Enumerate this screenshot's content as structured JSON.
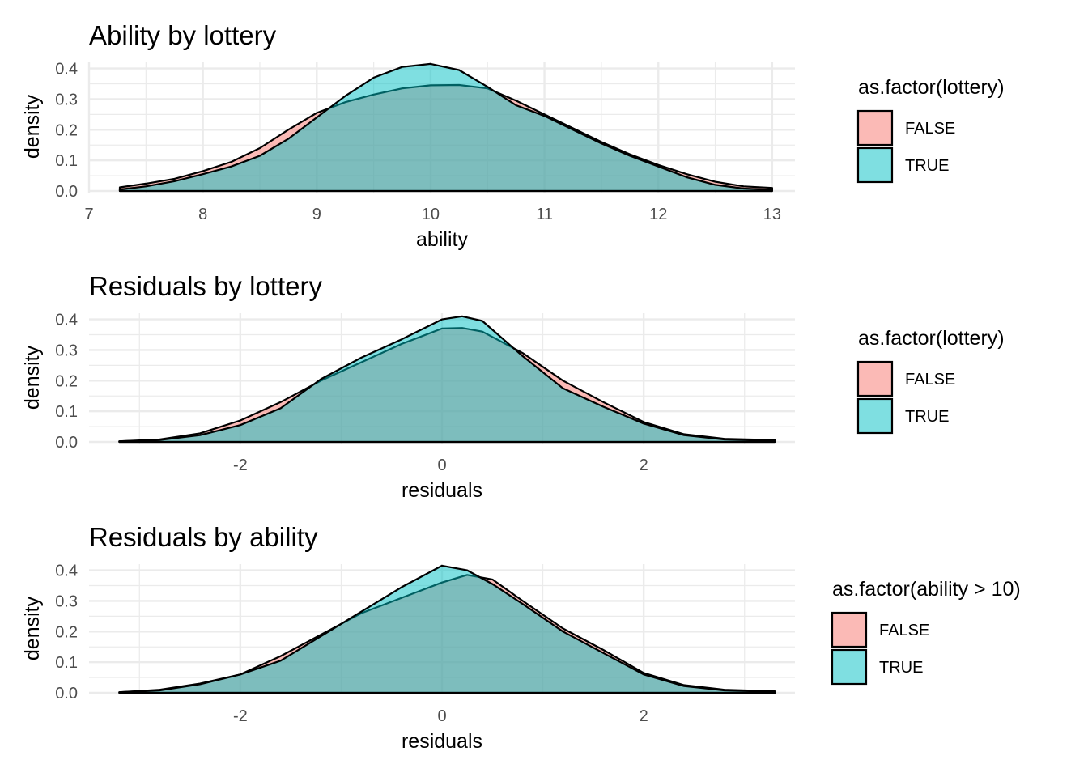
{
  "colors": {
    "false_fill": "#F8766D",
    "true_fill": "#00BFC4",
    "outline": "#000000",
    "grid": "#EBEBEB"
  },
  "chart_data": [
    {
      "type": "area",
      "subtype": "density",
      "title": "Ability by lottery",
      "xlabel": "ability",
      "ylabel": "density",
      "xlim": [
        7,
        13.2
      ],
      "ylim": [
        0,
        0.42
      ],
      "xticks": [
        7,
        8,
        9,
        10,
        11,
        12,
        13
      ],
      "xtick_labels": [
        "7",
        "8",
        "9",
        "10",
        "11",
        "12",
        "13"
      ],
      "yticks": [
        0,
        0.1,
        0.2,
        0.3,
        0.4
      ],
      "ytick_labels": [
        "0.0",
        "0.1",
        "0.2",
        "0.3",
        "0.4"
      ],
      "grid": true,
      "legend": {
        "title": "as.factor(lottery)",
        "position": "right",
        "entries": [
          "FALSE",
          "TRUE"
        ]
      },
      "series": [
        {
          "name": "FALSE",
          "x": [
            7.27,
            7.5,
            7.75,
            8.0,
            8.25,
            8.5,
            8.75,
            9.0,
            9.25,
            9.5,
            9.75,
            10.0,
            10.25,
            10.5,
            10.75,
            11.0,
            11.25,
            11.5,
            11.75,
            12.0,
            12.25,
            12.5,
            12.75,
            13.0
          ],
          "y": [
            0.012,
            0.024,
            0.04,
            0.065,
            0.095,
            0.14,
            0.2,
            0.255,
            0.29,
            0.315,
            0.335,
            0.345,
            0.346,
            0.335,
            0.295,
            0.25,
            0.205,
            0.16,
            0.12,
            0.085,
            0.055,
            0.03,
            0.015,
            0.01
          ]
        },
        {
          "name": "TRUE",
          "x": [
            7.27,
            7.5,
            7.75,
            8.0,
            8.25,
            8.5,
            8.75,
            9.0,
            9.25,
            9.5,
            9.75,
            10.0,
            10.25,
            10.5,
            10.75,
            11.0,
            11.25,
            11.5,
            11.75,
            12.0,
            12.25,
            12.5,
            12.75,
            13.0
          ],
          "y": [
            0.005,
            0.015,
            0.032,
            0.055,
            0.08,
            0.115,
            0.17,
            0.24,
            0.31,
            0.37,
            0.405,
            0.415,
            0.395,
            0.34,
            0.28,
            0.245,
            0.2,
            0.155,
            0.115,
            0.08,
            0.045,
            0.02,
            0.008,
            0.004
          ]
        }
      ]
    },
    {
      "type": "area",
      "subtype": "density",
      "title": "Residuals by lottery",
      "xlabel": "residuals",
      "ylabel": "density",
      "xlim": [
        -3.5,
        3.5
      ],
      "ylim": [
        0,
        0.42
      ],
      "xticks": [
        -2,
        0,
        2
      ],
      "xtick_labels": [
        "-2",
        "0",
        "2"
      ],
      "yticks": [
        0,
        0.1,
        0.2,
        0.3,
        0.4
      ],
      "ytick_labels": [
        "0.0",
        "0.1",
        "0.2",
        "0.3",
        "0.4"
      ],
      "grid": true,
      "legend": {
        "title": "as.factor(lottery)",
        "position": "right",
        "entries": [
          "FALSE",
          "TRUE"
        ]
      },
      "series": [
        {
          "name": "FALSE",
          "x": [
            -3.2,
            -2.8,
            -2.4,
            -2.0,
            -1.6,
            -1.2,
            -0.8,
            -0.4,
            0.0,
            0.2,
            0.4,
            0.8,
            1.2,
            1.6,
            2.0,
            2.4,
            2.8,
            3.3
          ],
          "y": [
            0.002,
            0.008,
            0.028,
            0.07,
            0.13,
            0.2,
            0.26,
            0.32,
            0.37,
            0.372,
            0.36,
            0.29,
            0.2,
            0.13,
            0.065,
            0.025,
            0.01,
            0.006
          ]
        },
        {
          "name": "TRUE",
          "x": [
            -3.2,
            -2.8,
            -2.4,
            -2.0,
            -1.6,
            -1.2,
            -0.8,
            -0.4,
            0.0,
            0.2,
            0.4,
            0.8,
            1.2,
            1.6,
            2.0,
            2.4,
            2.8,
            3.3
          ],
          "y": [
            0.002,
            0.006,
            0.022,
            0.055,
            0.11,
            0.205,
            0.275,
            0.335,
            0.4,
            0.41,
            0.395,
            0.28,
            0.175,
            0.115,
            0.06,
            0.022,
            0.008,
            0.004
          ]
        }
      ]
    },
    {
      "type": "area",
      "subtype": "density",
      "title": "Residuals by ability",
      "xlabel": "residuals",
      "ylabel": "density",
      "xlim": [
        -3.5,
        3.5
      ],
      "ylim": [
        0,
        0.42
      ],
      "xticks": [
        -2,
        0,
        2
      ],
      "xtick_labels": [
        "-2",
        "0",
        "2"
      ],
      "yticks": [
        0,
        0.1,
        0.2,
        0.3,
        0.4
      ],
      "ytick_labels": [
        "0.0",
        "0.1",
        "0.2",
        "0.3",
        "0.4"
      ],
      "grid": true,
      "legend": {
        "title": "as.factor(ability > 10)",
        "position": "right",
        "entries": [
          "FALSE",
          "TRUE"
        ]
      },
      "series": [
        {
          "name": "FALSE",
          "x": [
            -3.2,
            -2.8,
            -2.4,
            -2.0,
            -1.6,
            -1.2,
            -0.8,
            -0.4,
            0.0,
            0.25,
            0.5,
            0.8,
            1.2,
            1.6,
            2.0,
            2.4,
            2.8,
            3.3
          ],
          "y": [
            0.002,
            0.01,
            0.03,
            0.06,
            0.12,
            0.19,
            0.26,
            0.31,
            0.36,
            0.385,
            0.37,
            0.3,
            0.21,
            0.14,
            0.065,
            0.025,
            0.01,
            0.005
          ]
        },
        {
          "name": "TRUE",
          "x": [
            -3.2,
            -2.8,
            -2.4,
            -2.0,
            -1.6,
            -1.2,
            -0.8,
            -0.4,
            0.0,
            0.25,
            0.5,
            0.8,
            1.2,
            1.6,
            2.0,
            2.4,
            2.8,
            3.3
          ],
          "y": [
            0.002,
            0.008,
            0.028,
            0.06,
            0.105,
            0.185,
            0.265,
            0.345,
            0.415,
            0.4,
            0.355,
            0.29,
            0.2,
            0.13,
            0.06,
            0.022,
            0.008,
            0.004
          ]
        }
      ]
    }
  ]
}
